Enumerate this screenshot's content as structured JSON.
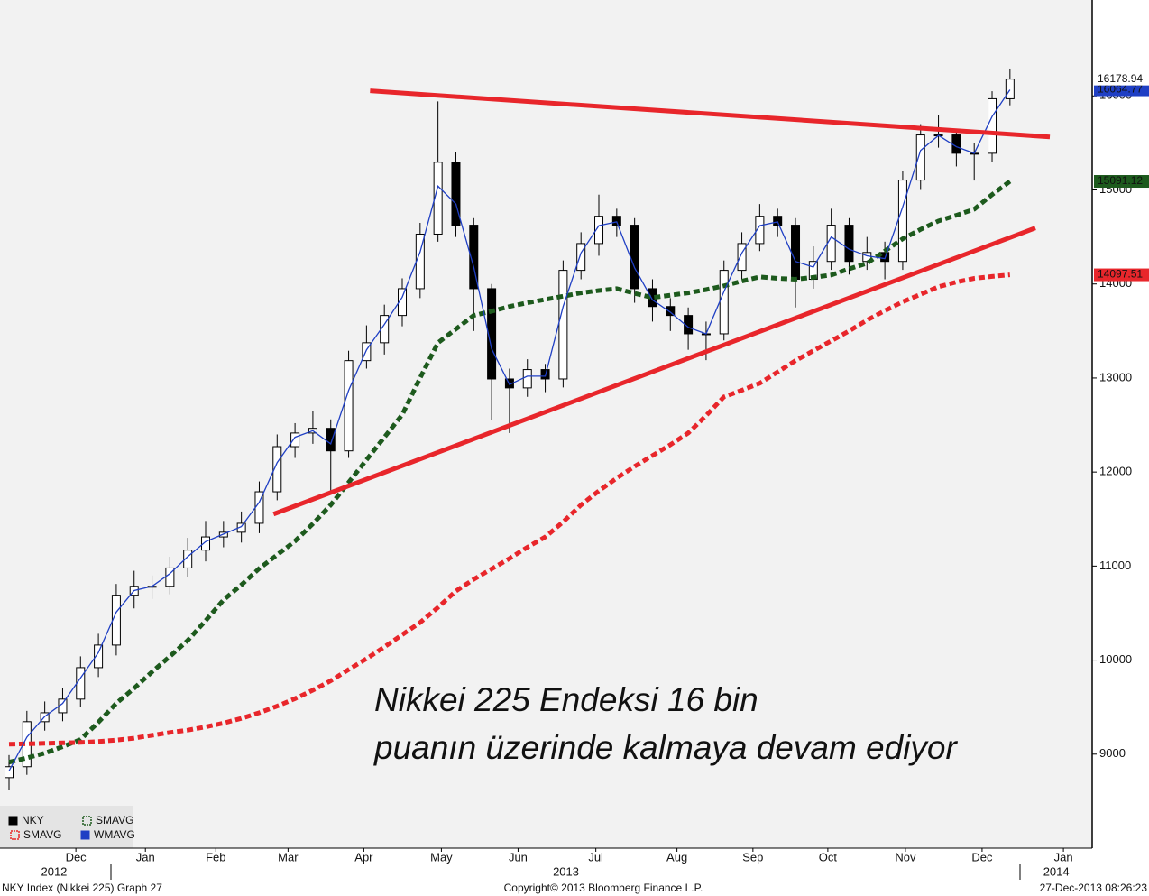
{
  "chart_data": {
    "type": "candlestick",
    "xlim": [
      -0.505,
      60.6
    ],
    "ylim": [
      8000,
      17020
    ],
    "yticks": [
      9000,
      10000,
      11000,
      12000,
      13000,
      14000,
      15000,
      16000
    ],
    "xticks": [
      {
        "value": 3.74,
        "label": "Dec"
      },
      {
        "value": 7.63,
        "label": "Jan"
      },
      {
        "value": 11.57,
        "label": "Feb"
      },
      {
        "value": 15.61,
        "label": "Mar"
      },
      {
        "value": 19.85,
        "label": "Apr"
      },
      {
        "value": 24.19,
        "label": "May"
      },
      {
        "value": 28.48,
        "label": "Jun"
      },
      {
        "value": 32.83,
        "label": "Jul"
      },
      {
        "value": 37.37,
        "label": "Aug"
      },
      {
        "value": 41.62,
        "label": "Sep"
      },
      {
        "value": 45.81,
        "label": "Oct"
      },
      {
        "value": 50.15,
        "label": "Nov"
      },
      {
        "value": 54.44,
        "label": "Dec"
      },
      {
        "value": 58.99,
        "label": "Jan"
      }
    ],
    "year_ticks": [
      {
        "value": 2.52,
        "label": "2012"
      },
      {
        "value": 31.16,
        "label": "2013"
      },
      {
        "value": 58.59,
        "label": "2014"
      }
    ],
    "series": [
      {
        "name": "NKY",
        "color": "#000000",
        "open": [
          8750,
          8866,
          9345,
          9440,
          9585,
          9920,
          10160,
          10690,
          10785,
          10785,
          10980,
          11170,
          11310,
          11360,
          11455,
          11790,
          12270,
          12415,
          12465,
          12225,
          13185,
          13375,
          13665,
          13950,
          14530,
          15295,
          14625,
          13950,
          12990,
          12895,
          13090,
          12990,
          14145,
          14430,
          14720,
          14625,
          13950,
          13760,
          13665,
          13470,
          13470,
          14145,
          14430,
          14720,
          14625,
          14050,
          14240,
          14625,
          14240,
          14335,
          14240,
          15105,
          15585,
          15585,
          15390,
          15390,
          15970
        ],
        "high": [
          8990,
          9460,
          9560,
          9700,
          10040,
          10280,
          10810,
          10950,
          10900,
          11100,
          11300,
          11480,
          11480,
          11580,
          11900,
          12400,
          12520,
          12650,
          12560,
          13290,
          13560,
          13780,
          14060,
          14650,
          15942,
          15400,
          14700,
          14000,
          13100,
          13200,
          13150,
          14250,
          14550,
          14950,
          14800,
          14700,
          14050,
          13850,
          13750,
          13600,
          14250,
          14550,
          14850,
          14800,
          14700,
          14400,
          14800,
          14700,
          14500,
          14450,
          15200,
          15700,
          15800,
          15650,
          15500,
          16050,
          16291
        ],
        "low": [
          8620,
          8780,
          9250,
          9350,
          9500,
          9820,
          10050,
          10550,
          10650,
          10700,
          10880,
          11050,
          11200,
          11250,
          11350,
          11700,
          12150,
          12300,
          11800,
          12150,
          13100,
          13250,
          13550,
          13850,
          14450,
          14500,
          13500,
          12550,
          12415,
          12800,
          12850,
          12900,
          14050,
          14300,
          14500,
          13800,
          13600,
          13500,
          13300,
          13190,
          13400,
          14050,
          14350,
          14500,
          13750,
          13950,
          14150,
          14100,
          14150,
          14050,
          14150,
          15000,
          15450,
          15250,
          15100,
          15300,
          15900
        ],
        "close": [
          8866,
          9345,
          9440,
          9585,
          9920,
          10160,
          10690,
          10785,
          10785,
          10980,
          11170,
          11310,
          11360,
          11455,
          11790,
          12270,
          12415,
          12465,
          12225,
          13185,
          13375,
          13665,
          13950,
          14530,
          15295,
          14625,
          13950,
          12990,
          12895,
          13090,
          12990,
          14145,
          14430,
          14720,
          14625,
          13950,
          13760,
          13665,
          13470,
          13470,
          14145,
          14430,
          14720,
          14625,
          14050,
          14240,
          14625,
          14240,
          14335,
          14240,
          15105,
          15585,
          15585,
          15390,
          15390,
          15970,
          16178.94
        ]
      },
      {
        "name": "SMAVG",
        "color": "#1d5a1d",
        "dashed": true,
        "values": [
          8914,
          8960,
          9010,
          9080,
          9155,
          9340,
          9540,
          9700,
          9875,
          10040,
          10210,
          10420,
          10640,
          10800,
          10975,
          11120,
          11265,
          11450,
          11650,
          11890,
          12130,
          12370,
          12610,
          13000,
          13375,
          13520,
          13665,
          13710,
          13760,
          13800,
          13835,
          13870,
          13905,
          13930,
          13950,
          13900,
          13855,
          13880,
          13905,
          13940,
          13980,
          14030,
          14075,
          14060,
          14050,
          14070,
          14095,
          14160,
          14220,
          14350,
          14480,
          14580,
          14670,
          14730,
          14795,
          14950,
          15091.12
        ]
      },
      {
        "name": "SMAVG",
        "color": "#e8262b",
        "dashed": true,
        "values": [
          9105,
          9110,
          9115,
          9120,
          9125,
          9134,
          9150,
          9170,
          9200,
          9230,
          9255,
          9290,
          9330,
          9380,
          9440,
          9510,
          9590,
          9680,
          9780,
          9900,
          10015,
          10140,
          10270,
          10400,
          10560,
          10735,
          10860,
          10970,
          11080,
          11200,
          11310,
          11470,
          11650,
          11800,
          11935,
          12060,
          12175,
          12290,
          12415,
          12600,
          12800,
          12870,
          12945,
          13065,
          13185,
          13290,
          13395,
          13500,
          13615,
          13715,
          13810,
          13890,
          13970,
          14020,
          14060,
          14080,
          14097.51
        ]
      },
      {
        "name": "WMAVG",
        "color": "#1f3fc4",
        "dashed": false,
        "values": [
          8820,
          9180,
          9400,
          9540,
          9810,
          10080,
          10510,
          10740,
          10785,
          10920,
          11100,
          11260,
          11340,
          11420,
          11680,
          12100,
          12370,
          12440,
          12300,
          12870,
          13300,
          13570,
          13860,
          14340,
          15040,
          14850,
          14180,
          13310,
          12930,
          13020,
          13020,
          13760,
          14330,
          14620,
          14660,
          14170,
          13830,
          13700,
          13540,
          13470,
          13920,
          14330,
          14620,
          14660,
          14240,
          14180,
          14500,
          14370,
          14300,
          14270,
          14820,
          15420,
          15580,
          15460,
          15390,
          15780,
          16064.77
        ]
      }
    ],
    "trend_lines": [
      {
        "color": "#e8262b",
        "x": [
          20.2,
          58.23
        ],
        "y": [
          16054,
          15564
        ]
      },
      {
        "color": "#e8262b",
        "x": [
          14.8,
          57.42
        ],
        "y": [
          11553,
          14595
        ]
      }
    ],
    "annotations": [
      "Nikkei 225 Endeksi 16 bin",
      "puanın üzerinde kalmaya devam ediyor"
    ],
    "footer": {
      "left": "NKY Index (Nikkei 225) Graph 27",
      "center": "Copyright© 2013 Bloomberg Finance L.P.",
      "right": "27-Dec-2013 08:26:23"
    }
  }
}
